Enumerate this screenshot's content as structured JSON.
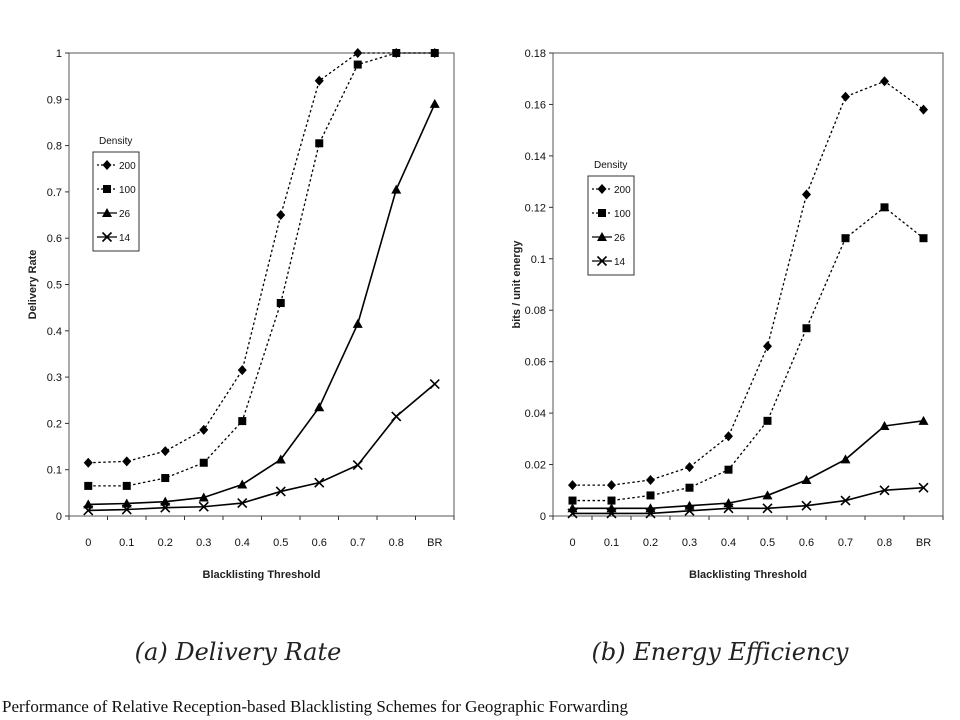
{
  "caption": "Performance of Relative Reception-based Blacklisting Schemes for Geographic Forwarding",
  "chart_data": [
    {
      "type": "line",
      "subcaption": "(a) Delivery Rate",
      "xlabel": "Blacklisting Threshold",
      "ylabel": "Delivery Rate",
      "categories": [
        "0",
        "0.1",
        "0.2",
        "0.3",
        "0.4",
        "0.5",
        "0.6",
        "0.7",
        "0.8",
        "BR"
      ],
      "ylim": [
        0,
        1
      ],
      "yticks": [
        "0",
        "0.1",
        "0.2",
        "0.3",
        "0.4",
        "0.5",
        "0.6",
        "0.7",
        "0.8",
        "0.9",
        "1"
      ],
      "grid": false,
      "legend": {
        "title": "Density",
        "position": "center-left"
      },
      "series": [
        {
          "name": "200",
          "marker": "diamond",
          "dash": "dotted",
          "values": [
            0.115,
            0.118,
            0.14,
            0.186,
            0.315,
            0.65,
            0.94,
            1.0,
            1.0,
            1.0
          ]
        },
        {
          "name": "100",
          "marker": "square",
          "dash": "dotted",
          "values": [
            0.065,
            0.065,
            0.082,
            0.115,
            0.205,
            0.46,
            0.805,
            0.975,
            1.0,
            1.0
          ]
        },
        {
          "name": "26",
          "marker": "triangle",
          "dash": "solid",
          "values": [
            0.025,
            0.027,
            0.031,
            0.04,
            0.068,
            0.122,
            0.235,
            0.415,
            0.705,
            0.89
          ]
        },
        {
          "name": "14",
          "marker": "cross",
          "dash": "solid",
          "values": [
            0.012,
            0.014,
            0.018,
            0.02,
            0.028,
            0.053,
            0.072,
            0.11,
            0.215,
            0.285
          ]
        }
      ]
    },
    {
      "type": "line",
      "subcaption": "(b) Energy Efficiency",
      "xlabel": "Blacklisting Threshold",
      "ylabel": "bits / unit energy",
      "categories": [
        "0",
        "0.1",
        "0.2",
        "0.3",
        "0.4",
        "0.5",
        "0.6",
        "0.7",
        "0.8",
        "BR"
      ],
      "ylim": [
        0,
        0.18
      ],
      "yticks": [
        "0",
        "0.02",
        "0.04",
        "0.06",
        "0.08",
        "0.1",
        "0.12",
        "0.14",
        "0.16",
        "0.18"
      ],
      "grid": false,
      "legend": {
        "title": "Density",
        "position": "upper-left"
      },
      "series": [
        {
          "name": "200",
          "marker": "diamond",
          "dash": "dotted",
          "values": [
            0.012,
            0.012,
            0.014,
            0.019,
            0.031,
            0.066,
            0.125,
            0.163,
            0.169,
            0.158
          ]
        },
        {
          "name": "100",
          "marker": "square",
          "dash": "dotted",
          "values": [
            0.006,
            0.006,
            0.008,
            0.011,
            0.018,
            0.037,
            0.073,
            0.108,
            0.12,
            0.108
          ]
        },
        {
          "name": "26",
          "marker": "triangle",
          "dash": "solid",
          "values": [
            0.003,
            0.003,
            0.003,
            0.004,
            0.005,
            0.008,
            0.014,
            0.022,
            0.035,
            0.037
          ]
        },
        {
          "name": "14",
          "marker": "cross",
          "dash": "solid",
          "values": [
            0.001,
            0.001,
            0.001,
            0.002,
            0.003,
            0.003,
            0.004,
            0.006,
            0.01,
            0.011
          ]
        }
      ]
    }
  ]
}
